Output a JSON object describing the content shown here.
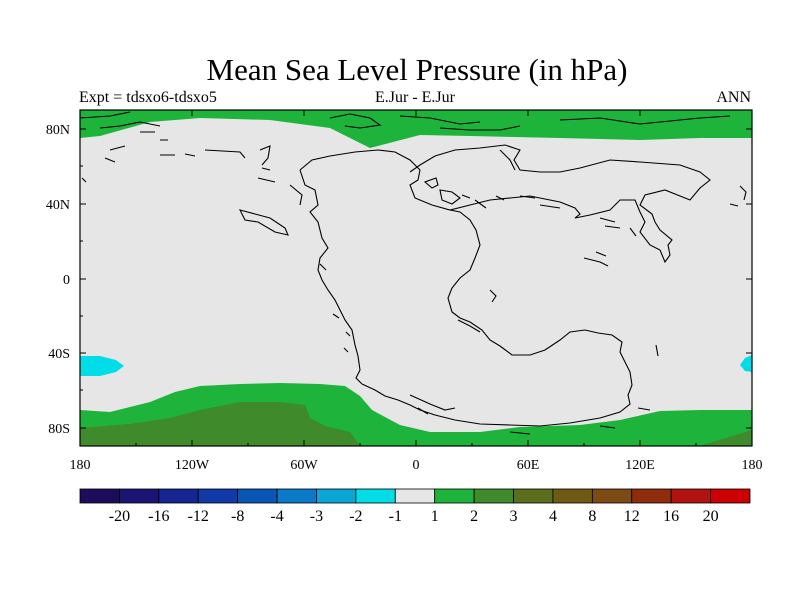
{
  "title": "Mean Sea Level Pressure (in hPa)",
  "subtitle_left": "Expt = tdsxo6-tdsxo5",
  "subtitle_center": "E.Jur - E.Jur",
  "subtitle_right": "ANN",
  "map": {
    "projection": "cylindrical equidistant",
    "lon_range": [
      -180,
      180
    ],
    "lat_range": [
      -90,
      90
    ],
    "lon_tick_labels": [
      "180",
      "120W",
      "60W",
      "0",
      "60E",
      "120E",
      "180"
    ],
    "lat_tick_labels": [
      "80N",
      "40N",
      "0",
      "40S",
      "80S"
    ],
    "background_class": "-1 to 1",
    "filled_regions": [
      {
        "name": "northern polar band",
        "class": "1 to 2"
      },
      {
        "name": "southern mid-latitude band",
        "class": "1 to 2"
      },
      {
        "name": "south polar cap",
        "class": "2 to 3"
      },
      {
        "name": "south Pacific low",
        "class": "-2 to -1"
      }
    ],
    "coastline": "Early Jurassic paleogeography (Pangaea)"
  },
  "colorbar": {
    "colors": [
      "#1e0b5c",
      "#1a1473",
      "#152693",
      "#0f3aa8",
      "#0a56b5",
      "#0a79c8",
      "#0aa6d6",
      "#00dde6",
      "#e6e6e6",
      "#1eb33a",
      "#3f8a2a",
      "#5a6e1e",
      "#6e5a14",
      "#7e4a14",
      "#8e2c0c",
      "#b21212",
      "#cc0000"
    ],
    "labels": [
      "-20",
      "-16",
      "-12",
      "-8",
      "-4",
      "-3",
      "-2",
      "-1",
      "1",
      "2",
      "3",
      "4",
      "8",
      "12",
      "16",
      "20"
    ]
  }
}
